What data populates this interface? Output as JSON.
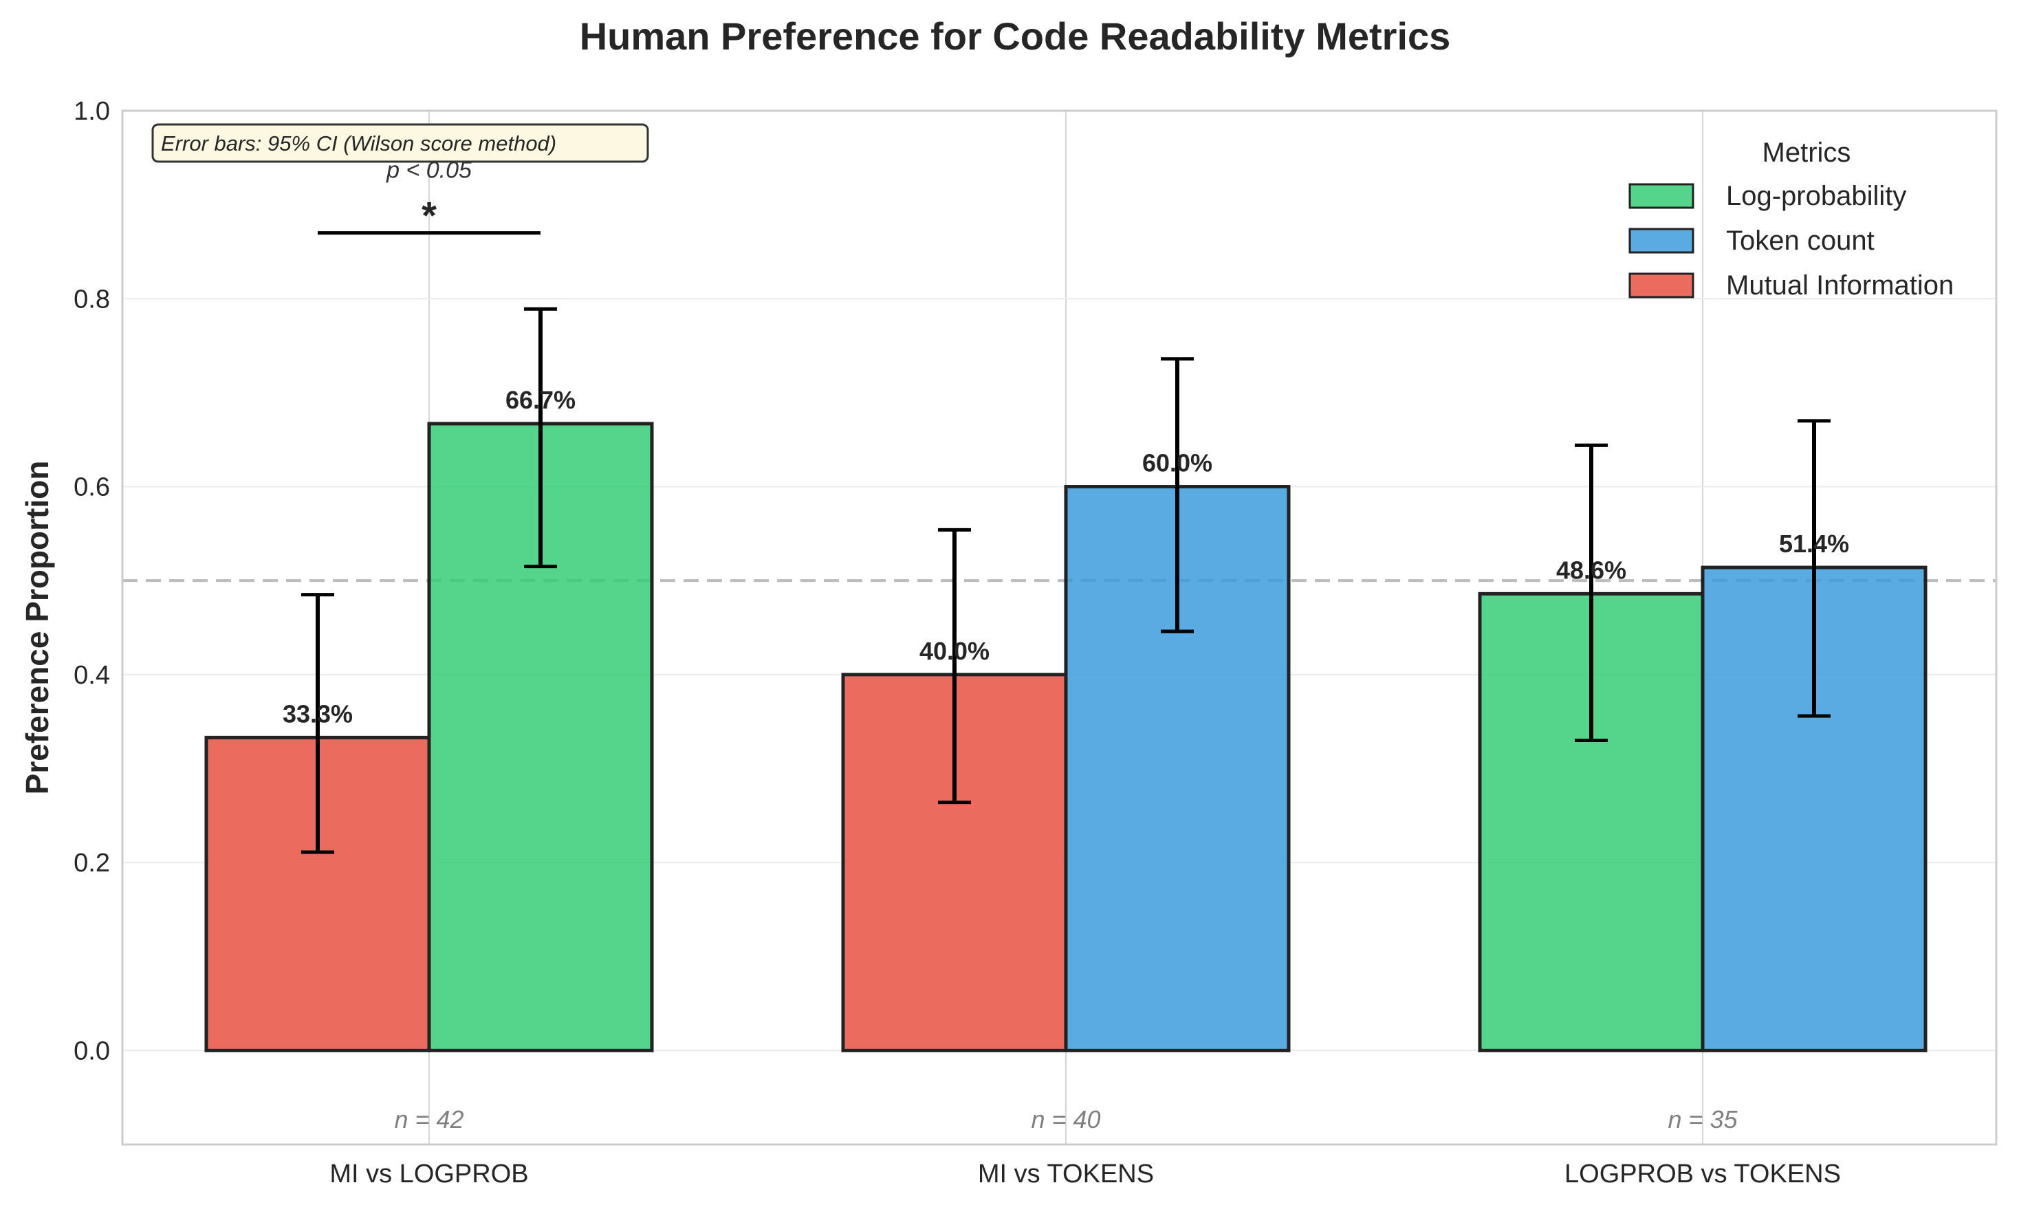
{
  "chart_data": {
    "type": "bar",
    "title": "Human Preference for Code Readability Metrics",
    "xlabel": "",
    "ylabel": "Preference Proportion",
    "ylim": [
      -0.1,
      1.0
    ],
    "yticks": [
      "0.0",
      "0.2",
      "0.4",
      "0.6",
      "0.8",
      "1.0"
    ],
    "grid": true,
    "reference_line": 0.5,
    "legend": {
      "title": "Metrics",
      "placement": "top-right",
      "entries": [
        {
          "name": "Log-probability",
          "color": "#2ecc71"
        },
        {
          "name": "Token count",
          "color": "#3498db"
        },
        {
          "name": "Mutual Information",
          "color": "#e74c3c"
        }
      ]
    },
    "categories": [
      {
        "label": "MI vs LOGPROB",
        "n_label": "n = 42",
        "bars": [
          {
            "metric": "Mutual Information",
            "value": 0.333,
            "label": "33.3%",
            "ci": [
              0.211,
              0.485
            ]
          },
          {
            "metric": "Log-probability",
            "value": 0.667,
            "label": "66.7%",
            "ci": [
              0.515,
              0.789
            ]
          }
        ]
      },
      {
        "label": "MI vs TOKENS",
        "n_label": "n = 40",
        "bars": [
          {
            "metric": "Mutual Information",
            "value": 0.4,
            "label": "40.0%",
            "ci": [
              0.264,
              0.554
            ]
          },
          {
            "metric": "Token count",
            "value": 0.6,
            "label": "60.0%",
            "ci": [
              0.446,
              0.736
            ]
          }
        ]
      },
      {
        "label": "LOGPROB vs TOKENS",
        "n_label": "n = 35",
        "bars": [
          {
            "metric": "Log-probability",
            "value": 0.486,
            "label": "48.6%",
            "ci": [
              0.33,
              0.644
            ]
          },
          {
            "metric": "Token count",
            "value": 0.514,
            "label": "51.4%",
            "ci": [
              0.356,
              0.67
            ]
          }
        ]
      }
    ],
    "annotation": "Error bars: 95% CI (Wilson score method)",
    "significance": {
      "category": "MI vs LOGPROB",
      "y": 0.87,
      "star": "*",
      "p_text": "p < 0.05"
    }
  }
}
